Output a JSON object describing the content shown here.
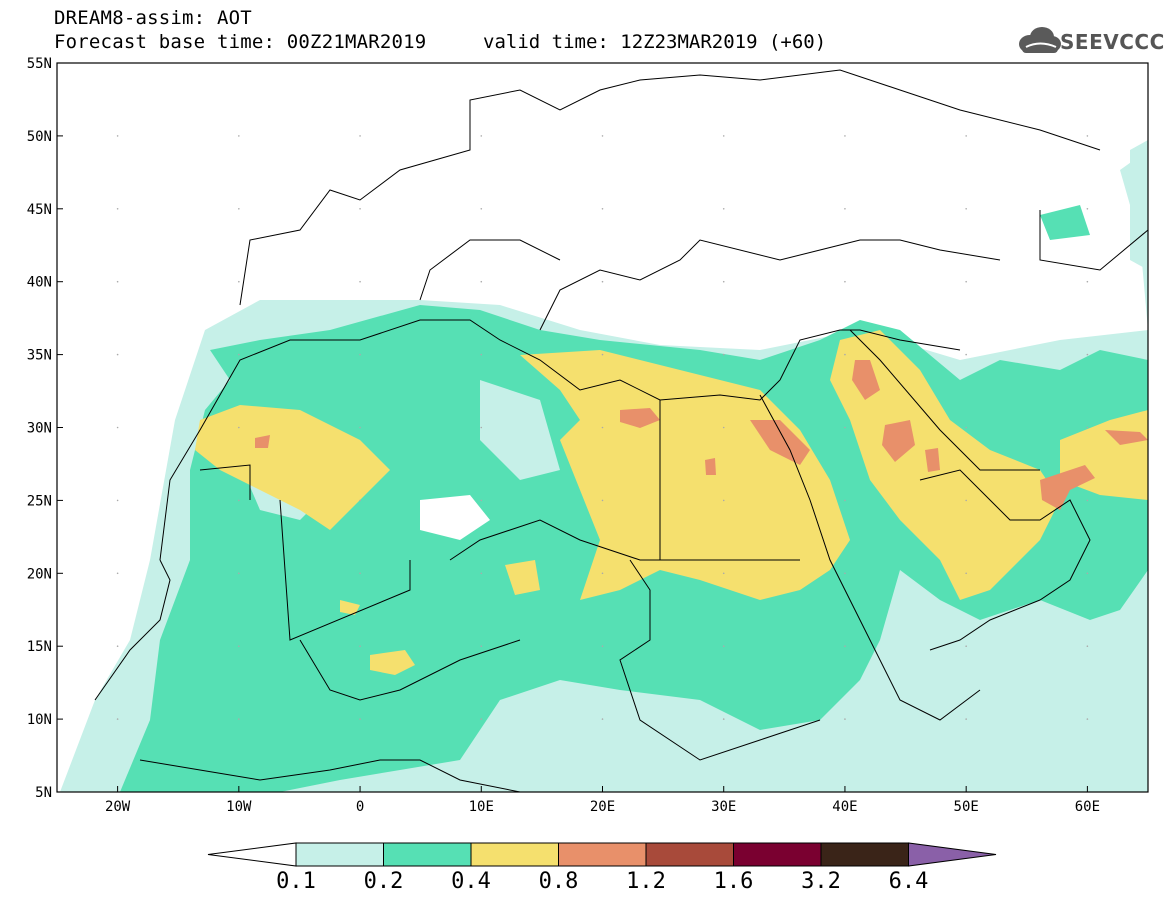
{
  "header": {
    "title": "DREAM8-assim: AOT",
    "base_time": "Forecast base time: 00Z21MAR2019",
    "valid_time": "valid time: 12Z23MAR2019 (+60)",
    "logo_text": "SEEVCCC"
  },
  "map": {
    "lat_labels": [
      "55N",
      "50N",
      "45N",
      "40N",
      "35N",
      "30N",
      "25N",
      "20N",
      "15N",
      "10N",
      "5N"
    ],
    "lon_labels": [
      "20W",
      "10W",
      "0",
      "10E",
      "20E",
      "30E",
      "40E",
      "50E",
      "60E"
    ],
    "extent": {
      "lon_min": -25,
      "lon_max": 65,
      "lat_min": 5,
      "lat_max": 55
    },
    "variable": "AOT"
  },
  "colorbar": {
    "labels": [
      "0.1",
      "0.2",
      "0.4",
      "0.8",
      "1.2",
      "1.6",
      "3.2",
      "6.4"
    ],
    "colors": [
      "#ffffff",
      "#c6f0e8",
      "#56e0b4",
      "#f5e06e",
      "#e8906a",
      "#a84a3a",
      "#7a0030",
      "#3a2418",
      "#8a60a8"
    ]
  }
}
